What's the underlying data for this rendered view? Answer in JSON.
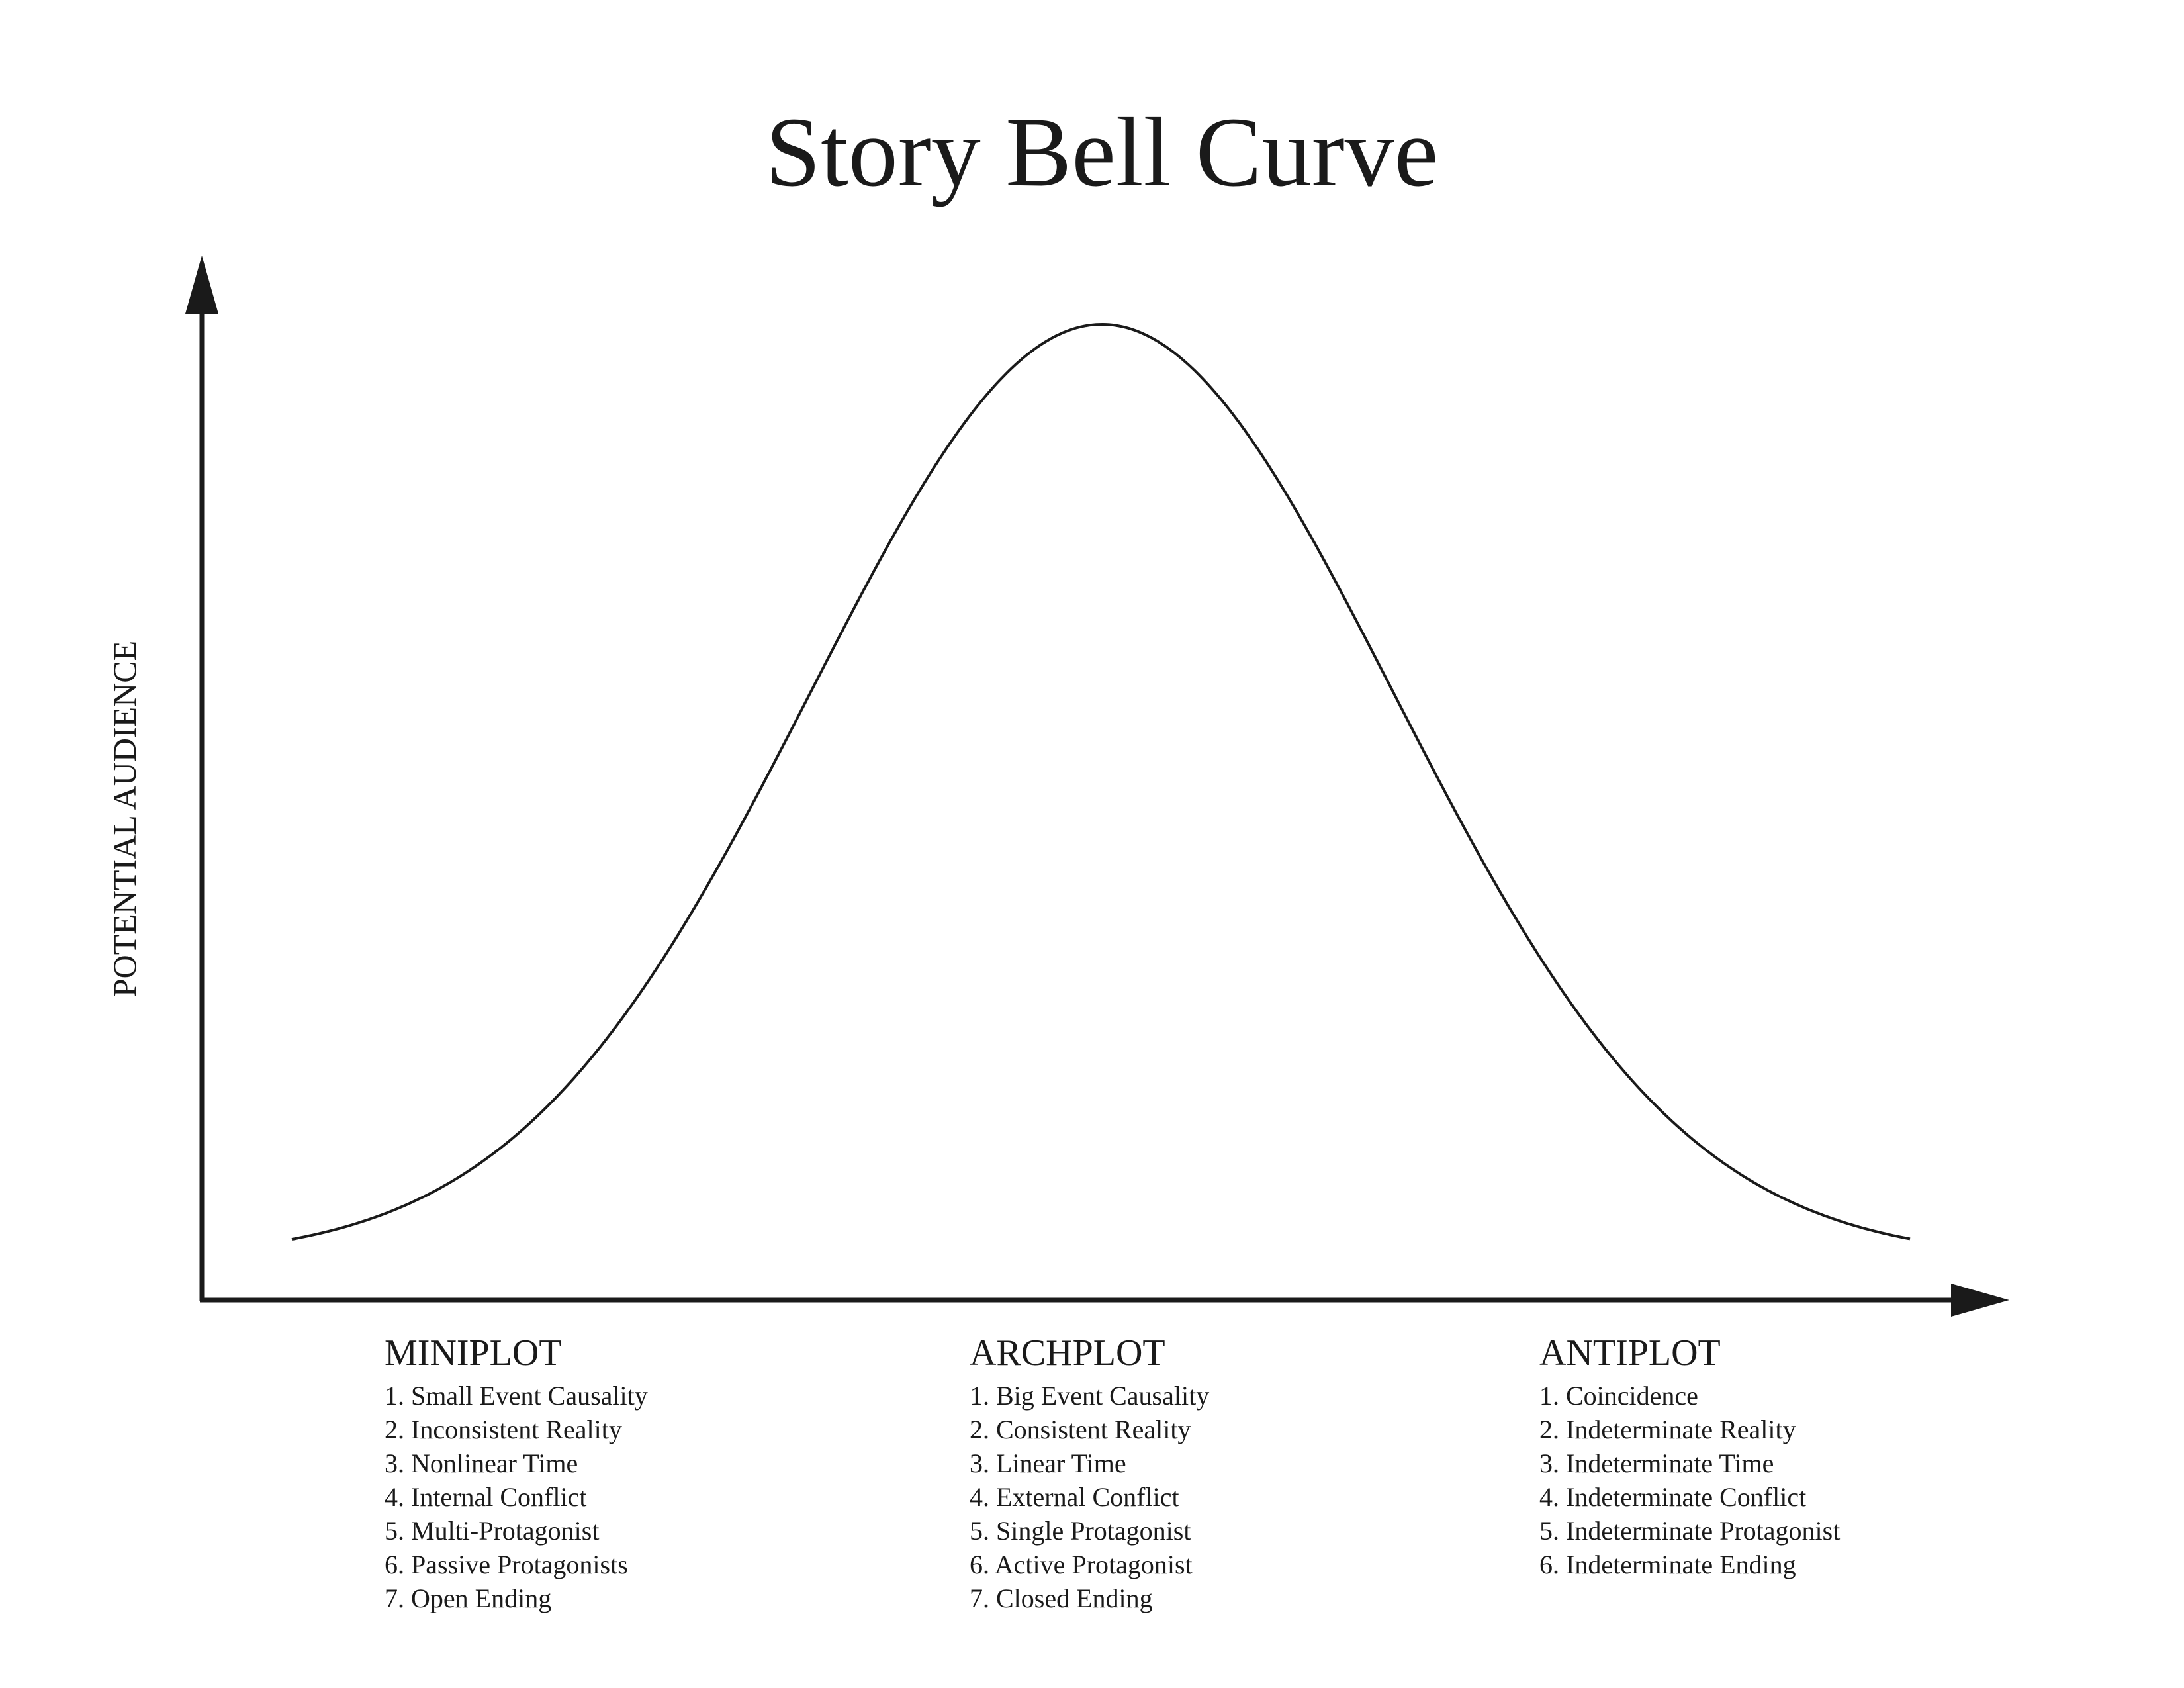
{
  "title": "Story Bell Curve",
  "y_axis_label": "POTENTIAL AUDIENCE",
  "columns": [
    {
      "heading": "MINIPLOT",
      "items": [
        "1. Small Event Causality",
        "2. Inconsistent Reality",
        "3. Nonlinear Time",
        "4. Internal Conflict",
        "5. Multi-Protagonist",
        "6. Passive Protagonists",
        "7. Open Ending"
      ]
    },
    {
      "heading": "ARCHPLOT",
      "items": [
        "1. Big Event Causality",
        "2. Consistent Reality",
        "3. Linear Time",
        "4. External Conflict",
        "5. Single Protagonist",
        "6. Active Protagonist",
        "7. Closed Ending"
      ]
    },
    {
      "heading": "ANTIPLOT",
      "items": [
        "1. Coincidence",
        "2. Indeterminate Reality",
        "3. Indeterminate Time",
        "4. Indeterminate Conflict",
        "5. Indeterminate Protagonist",
        "6. Indeterminate Ending"
      ]
    }
  ]
}
